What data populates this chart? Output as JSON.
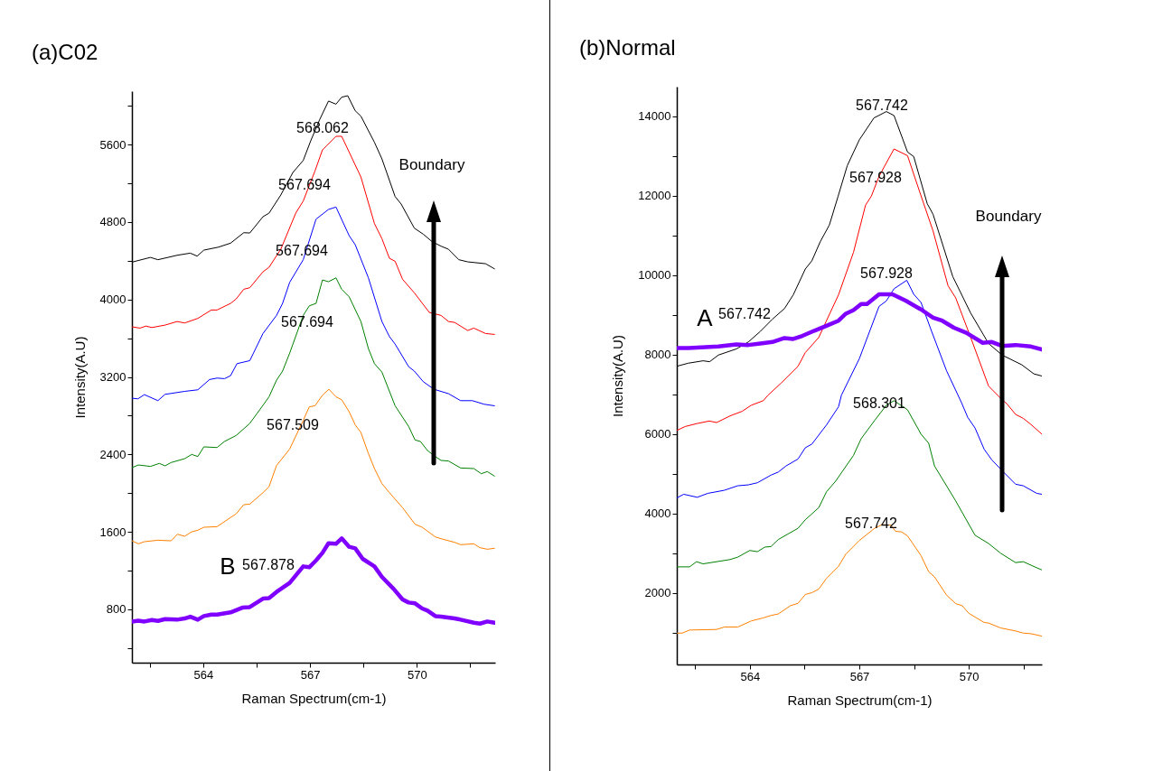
{
  "chart_data": [
    {
      "type": "line",
      "title": "(a)C02",
      "xlabel": "Raman Spectrum(cm-1)",
      "ylabel": "Intensity(A.U)",
      "xlim": [
        562,
        572.2
      ],
      "ylim": [
        250,
        6150
      ],
      "xticks": [
        {
          "value": 562.5,
          "label": null
        },
        564,
        {
          "value": 565.5,
          "label": null
        },
        567,
        {
          "value": 568.5,
          "label": null
        },
        570,
        {
          "value": 571.5,
          "label": null
        }
      ],
      "yticks": [
        {
          "value": 400,
          "label": null
        },
        800,
        {
          "value": 1200,
          "label": null
        },
        1600,
        {
          "value": 2000,
          "label": null
        },
        2400,
        {
          "value": 2800,
          "label": null
        },
        3200,
        {
          "value": 3600,
          "label": null
        },
        4000,
        {
          "value": 4400,
          "label": null
        },
        4800,
        {
          "value": 5200,
          "label": null
        },
        5600,
        {
          "value": 6000,
          "label": null
        }
      ],
      "grid": false,
      "legend": false,
      "annotations": [
        "568.062",
        "567.694",
        "567.694",
        "567.694",
        "567.509",
        "B",
        "567.878",
        "Boundary"
      ],
      "series": [
        {
          "color": "#000000",
          "x": [
            562,
            562.52,
            562.73,
            563.27,
            563.64,
            563.83,
            564.02,
            564.43,
            564.77,
            565.14,
            565.31,
            565.68,
            565.85,
            566.18,
            566.52,
            566.81,
            567.02,
            567.27,
            567.52,
            567.73,
            567.89,
            568.06,
            568.27,
            568.43,
            568.81,
            569.02,
            569.39,
            569.56,
            569.93,
            570.18,
            570.43,
            570.68,
            570.89,
            571.18,
            571.43,
            571.93,
            572.18
          ],
          "values": [
            4385,
            4434,
            4410,
            4456,
            4478,
            4447,
            4509,
            4540,
            4581,
            4689,
            4686,
            4854,
            4891,
            5078,
            5311,
            5435,
            5637,
            5855,
            6048,
            6016,
            6088,
            6103,
            5948,
            5892,
            5622,
            5451,
            5062,
            4985,
            4736,
            4674,
            4596,
            4550,
            4518,
            4410,
            4388,
            4369,
            4316
          ]
        },
        {
          "color": "#ff0000",
          "x": [
            562,
            562.23,
            562.39,
            562.56,
            562.93,
            563.27,
            563.48,
            563.85,
            564.23,
            564.39,
            564.77,
            564.93,
            565.14,
            565.31,
            565.68,
            565.85,
            566.18,
            566.6,
            566.81,
            567.14,
            567.35,
            567.73,
            567.89,
            568.43,
            568.81,
            569.02,
            569.23,
            569.39,
            569.6,
            569.93,
            570.35,
            570.68,
            570.89,
            571.06,
            571.43,
            571.6,
            571.93,
            572.18
          ],
          "values": [
            3717,
            3704,
            3725,
            3710,
            3735,
            3772,
            3757,
            3804,
            3891,
            3891,
            3959,
            4006,
            4105,
            4121,
            4285,
            4332,
            4518,
            4891,
            5016,
            5326,
            5544,
            5684,
            5684,
            5264,
            4783,
            4627,
            4425,
            4394,
            4208,
            4068,
            3866,
            3835,
            3772,
            3763,
            3679,
            3704,
            3648,
            3639
          ]
        },
        {
          "color": "#0000ff",
          "x": [
            562,
            562.17,
            562.35,
            562.73,
            562.93,
            563.48,
            563.85,
            564.18,
            564.39,
            564.6,
            564.77,
            564.95,
            565.31,
            565.68,
            566.06,
            566.23,
            566.43,
            566.81,
            567.17,
            567.52,
            567.73,
            568.1,
            568.27,
            568.64,
            569.02,
            569.23,
            569.39,
            569.77,
            569.93,
            570.18,
            570.48,
            570.89,
            571.23,
            571.56,
            571.89,
            572.18
          ],
          "values": [
            2980,
            2974,
            3017,
            2955,
            3020,
            3051,
            3067,
            3173,
            3188,
            3182,
            3213,
            3337,
            3368,
            3648,
            3835,
            3959,
            4177,
            4410,
            4829,
            4929,
            4954,
            4658,
            4565,
            4223,
            3772,
            3617,
            3539,
            3306,
            3260,
            3151,
            3073,
            3027,
            2955,
            2955,
            2918,
            2902
          ]
        },
        {
          "color": "#008000",
          "x": [
            562,
            562.18,
            562.52,
            562.77,
            562.93,
            563.1,
            563.48,
            563.68,
            563.85,
            564.02,
            564.39,
            564.6,
            564.93,
            565.31,
            565.68,
            565.85,
            566.06,
            566.23,
            566.43,
            566.81,
            566.98,
            567.17,
            567.35,
            567.52,
            567.73,
            567.89,
            568.1,
            568.43,
            568.64,
            568.81,
            569.02,
            569.39,
            569.77,
            569.95,
            570.1,
            570.3,
            570.52,
            570.68,
            570.89,
            571.23,
            571.6,
            571.81,
            571.98,
            572.18
          ],
          "values": [
            2263,
            2291,
            2276,
            2307,
            2282,
            2316,
            2356,
            2400,
            2378,
            2478,
            2471,
            2534,
            2596,
            2720,
            2907,
            2995,
            3166,
            3260,
            3446,
            3835,
            3934,
            3959,
            4201,
            4183,
            4223,
            4105,
            4027,
            3772,
            3493,
            3337,
            3250,
            2902,
            2689,
            2549,
            2534,
            2440,
            2378,
            2338,
            2332,
            2260,
            2254,
            2201,
            2223,
            2176
          ]
        },
        {
          "color": "#ff8000",
          "x": [
            562,
            562.18,
            562.35,
            562.73,
            563.1,
            563.28,
            563.48,
            563.68,
            563.85,
            564.02,
            564.39,
            564.93,
            565.14,
            565.31,
            565.68,
            565.85,
            566.06,
            566.43,
            566.81,
            566.98,
            567.14,
            567.35,
            567.53,
            567.73,
            567.89,
            568.1,
            568.27,
            568.43,
            568.64,
            568.81,
            569.02,
            569.23,
            569.6,
            569.95,
            570.15,
            570.52,
            570.68,
            571.06,
            571.23,
            571.6,
            571.77,
            571.98,
            572.18
          ],
          "values": [
            1508,
            1477,
            1499,
            1514,
            1508,
            1576,
            1555,
            1601,
            1617,
            1648,
            1654,
            1788,
            1881,
            1887,
            2005,
            2067,
            2285,
            2456,
            2751,
            2891,
            2902,
            3011,
            3073,
            2995,
            2964,
            2840,
            2705,
            2627,
            2409,
            2254,
            2099,
            2005,
            1850,
            1679,
            1648,
            1548,
            1530,
            1492,
            1468,
            1477,
            1437,
            1421,
            1431
          ]
        },
        {
          "color": "#8000ff",
          "x": [
            562,
            562.18,
            562.35,
            562.56,
            562.73,
            562.93,
            563.27,
            563.48,
            563.64,
            563.85,
            564.02,
            564.23,
            564.39,
            564.77,
            565.1,
            565.31,
            565.68,
            565.85,
            566.06,
            566.43,
            566.81,
            566.98,
            567.17,
            567.35,
            567.52,
            567.73,
            567.89,
            568.1,
            568.27,
            568.48,
            568.81,
            569.02,
            569.35,
            569.6,
            569.77,
            569.95,
            570.15,
            570.3,
            570.52,
            570.68,
            571.06,
            571.23,
            571.6,
            571.77,
            571.98,
            572.18
          ],
          "values": [
            675,
            684,
            675,
            691,
            681,
            700,
            694,
            706,
            725,
            694,
            731,
            747,
            747,
            769,
            818,
            824,
            911,
            917,
            980,
            1073,
            1244,
            1235,
            1306,
            1384,
            1483,
            1477,
            1533,
            1446,
            1430,
            1322,
            1244,
            1135,
            1011,
            902,
            871,
            862,
            809,
            787,
            731,
            725,
            706,
            694,
            663,
            653,
            675,
            663
          ]
        }
      ]
    },
    {
      "type": "line",
      "title": "(b)Normal",
      "xlabel": "Raman Spectrum(cm-1)",
      "ylabel": "Intensity(A.U)",
      "xlim": [
        562,
        572
      ],
      "ylim": [
        200,
        14750
      ],
      "xticks": [
        {
          "value": 562.5,
          "label": null
        },
        564,
        {
          "value": 565.5,
          "label": null
        },
        567,
        {
          "value": 568.5,
          "label": null
        },
        570,
        {
          "value": 571.5,
          "label": null
        }
      ],
      "yticks": [
        {
          "value": 1000,
          "label": null
        },
        2000,
        {
          "value": 3000,
          "label": null
        },
        4000,
        {
          "value": 5000,
          "label": null
        },
        6000,
        {
          "value": 7000,
          "label": null
        },
        8000,
        {
          "value": 9000,
          "label": null
        },
        10000,
        {
          "value": 11000,
          "label": null
        },
        12000,
        {
          "value": 13000,
          "label": null
        },
        14000
      ],
      "grid": false,
      "legend": false,
      "annotations": [
        "567.742",
        "567.928",
        "567.928",
        "568.301",
        "567.742",
        "A",
        "567.742",
        "Boundary"
      ],
      "series": [
        {
          "color": "#000000",
          "x": [
            562,
            562.31,
            562.72,
            562.9,
            563.14,
            563.63,
            563.96,
            564.29,
            564.62,
            564.95,
            565.19,
            565.52,
            565.7,
            565.93,
            566.18,
            566.42,
            566.67,
            567.0,
            567.4,
            567.74,
            567.95,
            568.32,
            568.49,
            568.86,
            569.02,
            569.56,
            570.05,
            570.54,
            570.91,
            571.45,
            571.78,
            572.0
          ],
          "values": [
            7709,
            7786,
            7847,
            7824,
            7992,
            8145,
            8321,
            8589,
            8896,
            9163,
            9508,
            10158,
            10365,
            10847,
            11268,
            11995,
            12761,
            13411,
            13962,
            14123,
            14024,
            13105,
            12990,
            11804,
            11536,
            9967,
            9049,
            8283,
            7992,
            7747,
            7518,
            7464
          ]
        },
        {
          "color": "#ff0000",
          "x": [
            562,
            562.23,
            562.56,
            562.89,
            563.09,
            563.46,
            563.79,
            564.04,
            564.37,
            564.5,
            564.86,
            565.32,
            565.52,
            565.89,
            566.1,
            566.43,
            566.84,
            567.17,
            567.33,
            567.54,
            567.95,
            568.32,
            568.65,
            569.02,
            569.43,
            569.64,
            570.05,
            570.54,
            570.87,
            571.04,
            571.28,
            571.49,
            571.7,
            572.0
          ],
          "values": [
            6093,
            6192,
            6269,
            6330,
            6292,
            6460,
            6575,
            6728,
            6843,
            6982,
            7288,
            7709,
            8054,
            8436,
            8857,
            9508,
            10579,
            11766,
            11995,
            12493,
            13182,
            13013,
            12110,
            11115,
            9737,
            9431,
            8436,
            7212,
            6905,
            6766,
            6498,
            6398,
            6245,
            6000
          ]
        },
        {
          "color": "#0000ff",
          "x": [
            562,
            562.19,
            562.56,
            562.85,
            563.3,
            563.67,
            563.96,
            564.21,
            564.58,
            564.78,
            564.99,
            565.32,
            565.52,
            565.7,
            566.1,
            566.43,
            566.51,
            567.0,
            567.54,
            567.74,
            567.95,
            568.3,
            568.49,
            568.69,
            568.98,
            569.39,
            569.8,
            569.97,
            570.17,
            570.42,
            570.63,
            570.95,
            571.28,
            571.49,
            571.86,
            572.0
          ],
          "values": [
            4394,
            4486,
            4410,
            4509,
            4586,
            4700,
            4723,
            4777,
            4968,
            5045,
            5198,
            5374,
            5657,
            5749,
            6231,
            6689,
            6982,
            7900,
            9217,
            9355,
            9661,
            9875,
            9523,
            9316,
            8589,
            7594,
            6791,
            6422,
            6154,
            5619,
            5351,
            5045,
            4739,
            4700,
            4509,
            4486
          ]
        },
        {
          "color": "#008000",
          "x": [
            562,
            562.35,
            562.54,
            562.72,
            563.46,
            563.67,
            564.0,
            564.21,
            564.41,
            564.58,
            564.78,
            565.32,
            565.52,
            565.89,
            566.1,
            566.35,
            566.84,
            567.05,
            567.42,
            567.74,
            567.95,
            568.32,
            568.69,
            568.9,
            569.06,
            569.64,
            570.17,
            570.54,
            570.87,
            571.28,
            571.49,
            571.86,
            572.0
          ],
          "values": [
            2658,
            2658,
            2788,
            2734,
            2842,
            2903,
            3071,
            3040,
            3155,
            3170,
            3346,
            3629,
            3844,
            4150,
            4547,
            4815,
            5465,
            5886,
            6345,
            6728,
            6842,
            6613,
            6001,
            5771,
            5198,
            4318,
            3454,
            3247,
            3002,
            2765,
            2788,
            2635,
            2581
          ]
        },
        {
          "color": "#ff8000",
          "x": [
            562,
            562.15,
            562.35,
            563.09,
            563.3,
            563.67,
            564.04,
            564.37,
            564.58,
            564.78,
            565.11,
            565.32,
            565.52,
            565.7,
            565.89,
            566.1,
            566.43,
            566.63,
            567.0,
            567.42,
            567.62,
            567.87,
            567.99,
            568.16,
            568.32,
            568.69,
            568.9,
            569.06,
            569.39,
            569.64,
            569.82,
            570.0,
            570.42,
            570.54,
            570.87,
            571.28,
            571.49,
            571.7,
            572.0
          ],
          "values": [
            990,
            990,
            1067,
            1082,
            1143,
            1143,
            1296,
            1373,
            1434,
            1472,
            1679,
            1740,
            1962,
            2008,
            2099,
            2367,
            2673,
            2979,
            3323,
            3630,
            3721,
            3706,
            3553,
            3538,
            3438,
            2941,
            2535,
            2405,
            1946,
            1732,
            1679,
            1487,
            1258,
            1243,
            1120,
            1044,
            990,
            975,
            914
          ]
        },
        {
          "color": "#8000ff",
          "x": [
            562,
            562.31,
            563.14,
            563.63,
            563.96,
            564.29,
            564.62,
            564.95,
            565.19,
            565.44,
            565.77,
            566.1,
            566.43,
            566.63,
            566.84,
            567.05,
            567.21,
            567.54,
            567.91,
            568.28,
            568.69,
            569.02,
            569.27,
            569.59,
            569.93,
            570.38,
            570.63,
            570.91,
            571.28,
            571.7,
            572.0
          ],
          "values": [
            8168,
            8168,
            8207,
            8260,
            8245,
            8283,
            8321,
            8421,
            8398,
            8475,
            8605,
            8727,
            8857,
            9033,
            9125,
            9278,
            9278,
            9523,
            9523,
            9355,
            9140,
            8934,
            8857,
            8681,
            8551,
            8299,
            8321,
            8222,
            8245,
            8207,
            8130
          ]
        }
      ]
    }
  ]
}
